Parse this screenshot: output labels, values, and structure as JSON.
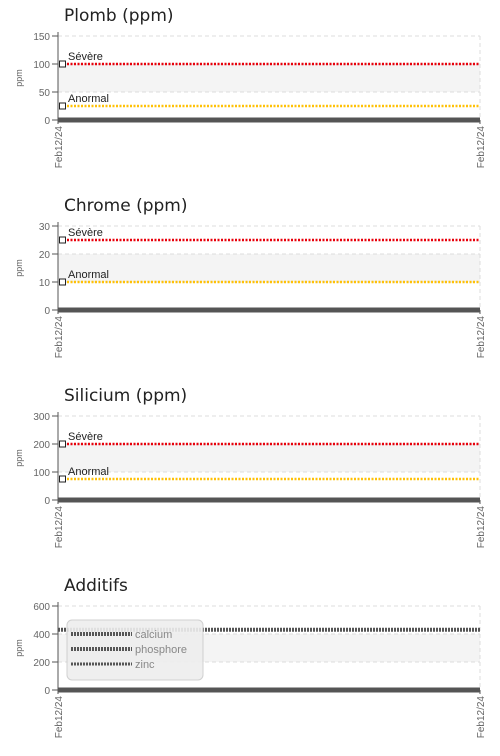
{
  "chart_data": [
    {
      "type": "line",
      "title": "Plomb (ppm)",
      "ylabel": "ppm",
      "ylim": [
        0,
        150
      ],
      "yticks": [
        0,
        50,
        100,
        150
      ],
      "x": [
        "Feb12/24",
        "Feb12/24"
      ],
      "grid": true,
      "colors": {
        "axis": "#555555",
        "grid": "#dddddd",
        "band": "#f4f4f4",
        "severe": "#e8000b",
        "abnormal": "#ffc107",
        "data": "#555555"
      },
      "series": [
        {
          "values": [
            0,
            0
          ]
        }
      ],
      "thresholds": [
        {
          "label": "Sévère",
          "value": 100,
          "color": "#e8000b"
        },
        {
          "label": "Anormal",
          "value": 25,
          "color": "#ffc107"
        }
      ]
    },
    {
      "type": "line",
      "title": "Chrome (ppm)",
      "ylabel": "ppm",
      "ylim": [
        0,
        30
      ],
      "yticks": [
        0,
        10,
        20,
        30
      ],
      "x": [
        "Feb12/24",
        "Feb12/24"
      ],
      "grid": true,
      "colors": {
        "axis": "#555555",
        "grid": "#dddddd",
        "band": "#f4f4f4",
        "severe": "#e8000b",
        "abnormal": "#ffc107",
        "data": "#555555"
      },
      "series": [
        {
          "values": [
            0,
            0
          ]
        }
      ],
      "thresholds": [
        {
          "label": "Sévère",
          "value": 25,
          "color": "#e8000b"
        },
        {
          "label": "Anormal",
          "value": 10,
          "color": "#ffc107"
        }
      ]
    },
    {
      "type": "line",
      "title": "Silicium (ppm)",
      "ylabel": "ppm",
      "ylim": [
        0,
        300
      ],
      "yticks": [
        0,
        100,
        200,
        300
      ],
      "x": [
        "Feb12/24",
        "Feb12/24"
      ],
      "grid": true,
      "colors": {
        "axis": "#555555",
        "grid": "#dddddd",
        "band": "#f4f4f4",
        "severe": "#e8000b",
        "abnormal": "#ffc107",
        "data": "#555555"
      },
      "series": [
        {
          "values": [
            0,
            0
          ]
        }
      ],
      "thresholds": [
        {
          "label": "Sévère",
          "value": 200,
          "color": "#e8000b"
        },
        {
          "label": "Anormal",
          "value": 75,
          "color": "#ffc107"
        }
      ]
    },
    {
      "type": "line",
      "title": "Additifs",
      "ylabel": "ppm",
      "ylim": [
        0,
        600
      ],
      "yticks": [
        0,
        200,
        400,
        600
      ],
      "x": [
        "Feb12/24",
        "Feb12/24"
      ],
      "grid": true,
      "legend": "top-left",
      "colors": {
        "axis": "#555555",
        "grid": "#dddddd",
        "band": "#f4f4f4",
        "data": "#555555"
      },
      "series": [
        {
          "name": "calcium",
          "values": [
            430,
            430
          ]
        },
        {
          "name": "phosphore",
          "values": [
            0,
            0
          ]
        },
        {
          "name": "zinc",
          "values": [
            0,
            0
          ]
        }
      ],
      "thresholds": []
    }
  ]
}
